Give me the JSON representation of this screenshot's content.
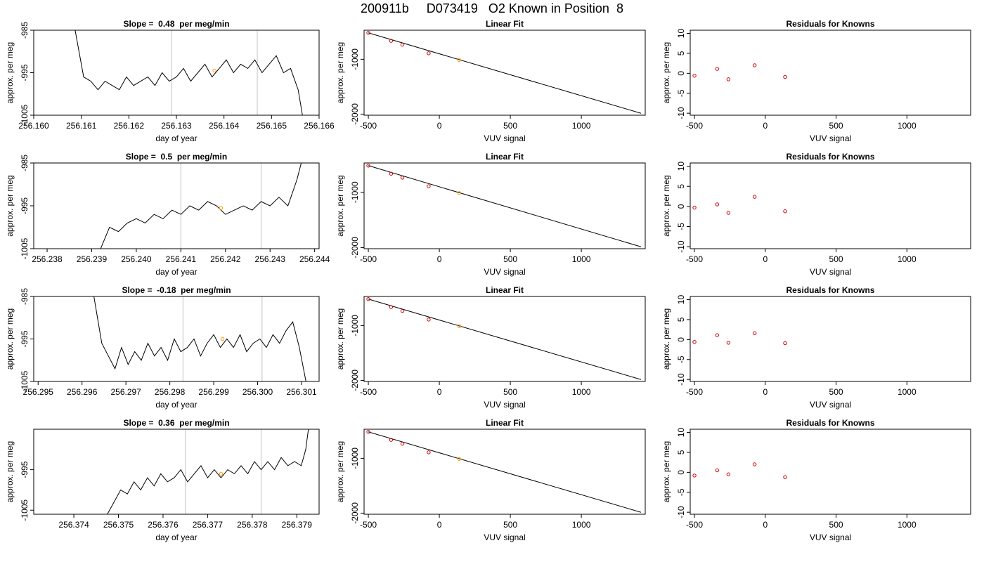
{
  "figure": {
    "title": "200911b     D073419   O2 Known in Position  8"
  },
  "colors": {
    "line": "#000000",
    "marker_current": "#ff9900",
    "marker_residual": "#cc0000",
    "vline": "#cccccc"
  },
  "chart_data": [
    {
      "type": "line",
      "title": "Slope =  0.48  per meg/min",
      "xlabel": "day of year",
      "ylabel": "approx. per meg",
      "xlim": [
        256.16,
        256.166
      ],
      "xticks": [
        "256.160",
        "256.161",
        "256.162",
        "256.163",
        "256.164",
        "256.165",
        "256.166"
      ],
      "ylim": [
        -1005,
        -985
      ],
      "yticks": [
        "-1005",
        "-995",
        "-985"
      ],
      "vlines": [
        256.1629,
        256.1647
      ],
      "current_point": {
        "x": 256.1638,
        "y": -994.5
      },
      "series": [
        {
          "x": [
            256.16087,
            256.16105,
            256.1612,
            256.16135,
            256.1615,
            256.16165,
            256.1618,
            256.16195,
            256.1621,
            256.16225,
            256.1624,
            256.16255,
            256.1627,
            256.16285,
            256.163,
            256.16315,
            256.1633,
            256.16345,
            256.1636,
            256.16375,
            256.1639,
            256.16405,
            256.1642,
            256.16435,
            256.1645,
            256.16465,
            256.1648,
            256.16495,
            256.1651,
            256.16525,
            256.1654,
            256.16556,
            256.16565
          ],
          "y": [
            -985,
            -996,
            -997,
            -999,
            -997,
            -998,
            -999,
            -996,
            -998,
            -997,
            -996,
            -998,
            -995,
            -997,
            -996,
            -994,
            -997,
            -995,
            -993,
            -996,
            -994,
            -992,
            -995,
            -993,
            -994,
            -992,
            -995,
            -993,
            -991,
            -995,
            -994,
            -999,
            -1005
          ]
        }
      ]
    },
    {
      "type": "scatter",
      "title": "Linear Fit",
      "xlabel": "VUV signal",
      "ylabel": "approx. per meg",
      "xlim": [
        -530,
        1450
      ],
      "xticks": [
        "-500",
        "0",
        "500",
        "1000"
      ],
      "ylim": [
        -2020,
        -470
      ],
      "yticks": [
        "-2000",
        "-1000"
      ],
      "points": {
        "x": [
          -500,
          -340,
          -260,
          -75,
          140
        ],
        "y": [
          -518,
          -664,
          -734,
          -891,
          -1014
        ]
      },
      "fit": {
        "x": [
          -500,
          1420
        ],
        "y": [
          -518,
          -1985
        ]
      }
    },
    {
      "type": "scatter",
      "title": "Residuals for Knowns",
      "xlabel": "VUV signal",
      "ylabel": "approx. per meg",
      "xlim": [
        -530,
        1450
      ],
      "xticks": [
        "-500",
        "0",
        "500",
        "1000"
      ],
      "ylim": [
        -10.5,
        10.8
      ],
      "yticks": [
        "-10",
        "-5",
        "0",
        "5",
        "10"
      ],
      "points": {
        "x": [
          -500,
          -340,
          -260,
          -75,
          140
        ],
        "y": [
          -0.6,
          1.1,
          -1.5,
          2.0,
          -0.9
        ]
      }
    },
    {
      "type": "line",
      "title": "Slope =  0.5  per meg/min",
      "xlabel": "day of year",
      "ylabel": "approx. per meg",
      "xlim": [
        256.2377,
        256.2441
      ],
      "xticks": [
        "256.238",
        "256.239",
        "256.240",
        "256.241",
        "256.242",
        "256.243",
        "256.244"
      ],
      "ylim": [
        -1005,
        -985
      ],
      "yticks": [
        "-1005",
        "-995",
        "-985"
      ],
      "vlines": [
        256.241,
        256.2428
      ],
      "current_point": {
        "x": 256.2419,
        "y": -995.5
      },
      "series": [
        {
          "x": [
            256.2392,
            256.2394,
            256.2396,
            256.2398,
            256.24,
            256.2402,
            256.2404,
            256.2406,
            256.2408,
            256.241,
            256.2412,
            256.2414,
            256.2416,
            256.2418,
            256.242,
            256.2422,
            256.2424,
            256.2426,
            256.2428,
            256.243,
            256.2432,
            256.2434,
            256.2436,
            256.2437
          ],
          "y": [
            -1005,
            -1000,
            -1001,
            -999,
            -998,
            -999,
            -997,
            -998,
            -996,
            -997,
            -995,
            -996,
            -994,
            -995,
            -997,
            -996,
            -995,
            -996,
            -994,
            -995,
            -993,
            -995,
            -989,
            -985
          ]
        }
      ]
    },
    {
      "type": "scatter",
      "title": "Linear Fit",
      "xlabel": "VUV signal",
      "ylabel": "approx. per meg",
      "xlim": [
        -530,
        1450
      ],
      "xticks": [
        "-500",
        "0",
        "500",
        "1000"
      ],
      "ylim": [
        -2020,
        -470
      ],
      "yticks": [
        "-2000",
        "-1000"
      ],
      "points": {
        "x": [
          -500,
          -340,
          -260,
          -75,
          140
        ],
        "y": [
          -518,
          -664,
          -734,
          -891,
          -1014
        ]
      },
      "fit": {
        "x": [
          -500,
          1420
        ],
        "y": [
          -518,
          -1985
        ]
      }
    },
    {
      "type": "scatter",
      "title": "Residuals for Knowns",
      "xlabel": "VUV signal",
      "ylabel": "approx. per meg",
      "xlim": [
        -530,
        1450
      ],
      "xticks": [
        "-500",
        "0",
        "500",
        "1000"
      ],
      "ylim": [
        -10.5,
        10.8
      ],
      "yticks": [
        "-10",
        "-5",
        "0",
        "5",
        "10"
      ],
      "points": {
        "x": [
          -500,
          -340,
          -260,
          -75,
          140
        ],
        "y": [
          -0.3,
          0.5,
          -1.6,
          2.4,
          -1.2
        ]
      }
    },
    {
      "type": "line",
      "title": "Slope =  -0.18  per meg/min",
      "xlabel": "day of year",
      "ylabel": "approx. per meg",
      "xlim": [
        256.2949,
        256.3014
      ],
      "xticks": [
        "256.295",
        "256.296",
        "256.297",
        "256.298",
        "256.299",
        "256.300",
        "256.301"
      ],
      "ylim": [
        -1005,
        -985
      ],
      "yticks": [
        "-1005",
        "-995",
        "-985"
      ],
      "vlines": [
        256.2983,
        256.3001
      ],
      "current_point": {
        "x": 256.2992,
        "y": -995
      },
      "series": [
        {
          "x": [
            256.29627,
            256.29645,
            256.2966,
            256.29675,
            256.2969,
            256.29705,
            256.2972,
            256.29735,
            256.2975,
            256.29765,
            256.2978,
            256.29795,
            256.2981,
            256.29825,
            256.2984,
            256.29855,
            256.2987,
            256.29885,
            256.299,
            256.29915,
            256.2993,
            256.29945,
            256.2996,
            256.29975,
            256.2999,
            256.30005,
            256.3002,
            256.30035,
            256.3005,
            256.30065,
            256.3008,
            256.30095,
            256.3011
          ],
          "y": [
            -985,
            -996,
            -999,
            -1002,
            -997,
            -1001,
            -998,
            -1000,
            -996,
            -999,
            -997,
            -1000,
            -995,
            -998,
            -997,
            -995,
            -999,
            -996,
            -994,
            -997,
            -995,
            -997,
            -994,
            -998,
            -996,
            -995,
            -997,
            -994,
            -996,
            -993,
            -991,
            -997,
            -1005
          ]
        }
      ]
    },
    {
      "type": "scatter",
      "title": "Linear Fit",
      "xlabel": "VUV signal",
      "ylabel": "approx. per meg",
      "xlim": [
        -530,
        1450
      ],
      "xticks": [
        "-500",
        "0",
        "500",
        "1000"
      ],
      "ylim": [
        -2020,
        -470
      ],
      "yticks": [
        "-2000",
        "-1000"
      ],
      "points": {
        "x": [
          -500,
          -340,
          -260,
          -75,
          140
        ],
        "y": [
          -518,
          -664,
          -734,
          -891,
          -1014
        ]
      },
      "fit": {
        "x": [
          -500,
          1420
        ],
        "y": [
          -518,
          -1985
        ]
      }
    },
    {
      "type": "scatter",
      "title": "Residuals for Knowns",
      "xlabel": "VUV signal",
      "ylabel": "approx. per meg",
      "xlim": [
        -530,
        1450
      ],
      "xticks": [
        "-500",
        "0",
        "500",
        "1000"
      ],
      "ylim": [
        -10.5,
        10.8
      ],
      "yticks": [
        "-10",
        "-5",
        "0",
        "5",
        "10"
      ],
      "points": {
        "x": [
          -500,
          -340,
          -260,
          -75,
          140
        ],
        "y": [
          -0.6,
          1.1,
          -0.8,
          1.6,
          -0.9
        ]
      }
    },
    {
      "type": "line",
      "title": "Slope =  0.36  per meg/min",
      "xlabel": "day of year",
      "ylabel": "approx. per meg",
      "xlim": [
        256.3731,
        256.3795
      ],
      "xticks": [
        "256.374",
        "256.375",
        "256.376",
        "256.377",
        "256.378",
        "256.379"
      ],
      "ylim": [
        -1006,
        -985
      ],
      "yticks": [
        "-1005",
        "-995"
      ],
      "vlines": [
        256.3765,
        256.3782
      ],
      "current_point": {
        "x": 256.3773,
        "y": -996
      },
      "series": [
        {
          "x": [
            256.37475,
            256.3749,
            256.37505,
            256.3752,
            256.37535,
            256.3755,
            256.37565,
            256.3758,
            256.37595,
            256.3761,
            256.37625,
            256.3764,
            256.37655,
            256.3767,
            256.37685,
            256.377,
            256.37715,
            256.3773,
            256.37745,
            256.3776,
            256.37775,
            256.3779,
            256.37805,
            256.3782,
            256.37835,
            256.3785,
            256.37865,
            256.3788,
            256.37895,
            256.3791,
            256.3792,
            256.37926
          ],
          "y": [
            -1006,
            -1003,
            -1000,
            -1001,
            -998,
            -1000,
            -997,
            -999,
            -996,
            -998,
            -997,
            -995,
            -998,
            -996,
            -994,
            -997,
            -995,
            -997,
            -995,
            -996,
            -994,
            -996,
            -993,
            -995,
            -993,
            -995,
            -992,
            -994,
            -993,
            -994,
            -990,
            -985
          ]
        }
      ]
    },
    {
      "type": "scatter",
      "title": "Linear Fit",
      "xlabel": "VUV signal",
      "ylabel": "approx. per meg",
      "xlim": [
        -530,
        1450
      ],
      "xticks": [
        "-500",
        "0",
        "500",
        "1000"
      ],
      "ylim": [
        -2020,
        -470
      ],
      "yticks": [
        "-2000",
        "-1000"
      ],
      "points": {
        "x": [
          -500,
          -340,
          -260,
          -75,
          140
        ],
        "y": [
          -518,
          -664,
          -734,
          -891,
          -1014
        ]
      },
      "fit": {
        "x": [
          -500,
          1420
        ],
        "y": [
          -518,
          -1985
        ]
      }
    },
    {
      "type": "scatter",
      "title": "Residuals for Knowns",
      "xlabel": "VUV signal",
      "ylabel": "approx. per meg",
      "xlim": [
        -530,
        1450
      ],
      "xticks": [
        "-500",
        "0",
        "500",
        "1000"
      ],
      "ylim": [
        -10.5,
        10.8
      ],
      "yticks": [
        "-10",
        "-5",
        "0",
        "5",
        "10"
      ],
      "points": {
        "x": [
          -500,
          -340,
          -260,
          -75,
          140
        ],
        "y": [
          -0.8,
          0.5,
          -0.5,
          2.0,
          -1.2
        ]
      }
    }
  ]
}
